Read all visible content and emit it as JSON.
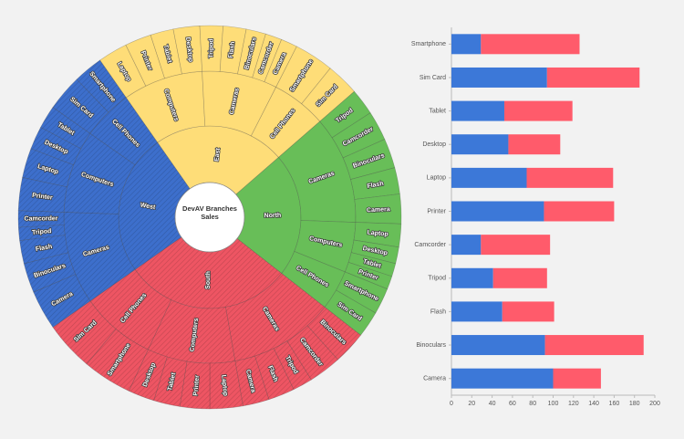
{
  "chart_data": [
    {
      "type": "sunburst",
      "title": "DevAV Branches Sales",
      "children": [
        {
          "name": "East",
          "color": "#fedd78",
          "children": [
            {
              "name": "Computers",
              "children": [
                {
                  "name": "Laptop",
                  "value": 9
                },
                {
                  "name": "Printer",
                  "value": 8
                },
                {
                  "name": "Tablet",
                  "value": 7
                },
                {
                  "name": "Desktop",
                  "value": 8
                }
              ]
            },
            {
              "name": "Cameras",
              "children": [
                {
                  "name": "Tripod",
                  "value": 7
                },
                {
                  "name": "Flash",
                  "value": 7
                },
                {
                  "name": "Binoculars",
                  "value": 6
                },
                {
                  "name": "Camcorder",
                  "value": 5
                },
                {
                  "name": "Camera",
                  "value": 5
                }
              ]
            },
            {
              "name": "Cell Phones",
              "children": [
                {
                  "name": "Smartphone",
                  "value": 12
                },
                {
                  "name": "Sim Card",
                  "value": 10
                }
              ]
            }
          ]
        },
        {
          "name": "North",
          "color": "#68be58",
          "children": [
            {
              "name": "Cameras",
              "children": [
                {
                  "name": "Tripod",
                  "value": 8
                },
                {
                  "name": "Camcorder",
                  "value": 9
                },
                {
                  "name": "Binoculars",
                  "value": 9
                },
                {
                  "name": "Flash",
                  "value": 8
                },
                {
                  "name": "Camera",
                  "value": 9
                }
              ]
            },
            {
              "name": "Computers",
              "children": [
                {
                  "name": "Laptop",
                  "value": 7
                },
                {
                  "name": "Desktop",
                  "value": 5
                },
                {
                  "name": "Tablet",
                  "value": 4
                },
                {
                  "name": "Printer",
                  "value": 4
                }
              ]
            },
            {
              "name": "Cell Phones",
              "children": [
                {
                  "name": "Smartphone",
                  "value": 8
                },
                {
                  "name": "Sim Card",
                  "value": 8
                }
              ]
            }
          ]
        },
        {
          "name": "South",
          "color": "#ee5563",
          "hatched": true,
          "children": [
            {
              "name": "Cameras",
              "children": [
                {
                  "name": "Binoculars",
                  "value": 10
                },
                {
                  "name": "Camcorder",
                  "value": 10
                },
                {
                  "name": "Tripod",
                  "value": 6
                },
                {
                  "name": "Flash",
                  "value": 8
                },
                {
                  "name": "Camera",
                  "value": 8
                }
              ]
            },
            {
              "name": "Computers",
              "children": [
                {
                  "name": "Laptop",
                  "value": 10
                },
                {
                  "name": "Printer",
                  "value": 9
                },
                {
                  "name": "Tablet",
                  "value": 8
                },
                {
                  "name": "Desktop",
                  "value": 8
                }
              ]
            },
            {
              "name": "Cell Phones",
              "children": [
                {
                  "name": "Smartphone",
                  "value": 15
                },
                {
                  "name": "Sim Card",
                  "value": 15
                }
              ]
            }
          ]
        },
        {
          "name": "West",
          "color": "#3d6fcc",
          "hatched": true,
          "children": [
            {
              "name": "Cameras",
              "children": [
                {
                  "name": "Camera",
                  "value": 12
                },
                {
                  "name": "Binoculars",
                  "value": 9
                },
                {
                  "name": "Flash",
                  "value": 7
                },
                {
                  "name": "Tripod",
                  "value": 4
                },
                {
                  "name": "Camcorder",
                  "value": 5
                }
              ]
            },
            {
              "name": "Computers",
              "children": [
                {
                  "name": "Printer",
                  "value": 10
                },
                {
                  "name": "Laptop",
                  "value": 9
                },
                {
                  "name": "Desktop",
                  "value": 7
                },
                {
                  "name": "Tablet",
                  "value": 7
                }
              ]
            },
            {
              "name": "Cell Phones",
              "children": [
                {
                  "name": "Sim Card",
                  "value": 11
                },
                {
                  "name": "Smartphone",
                  "value": 9
                }
              ]
            }
          ]
        }
      ]
    },
    {
      "type": "bar",
      "orientation": "horizontal",
      "stacked": true,
      "categories": [
        "Smartphone",
        "Sim Card",
        "Tablet",
        "Desktop",
        "Laptop",
        "Printer",
        "Camcorder",
        "Tripod",
        "Flash",
        "Binoculars",
        "Camera"
      ],
      "series": [
        {
          "color": "#3c78d8",
          "values": [
            29,
            94,
            52,
            56,
            74,
            91,
            29,
            41,
            50,
            92,
            100
          ]
        },
        {
          "color": "#ff5b6b",
          "values": [
            97,
            91,
            67,
            51,
            85,
            69,
            68,
            53,
            51,
            97,
            47
          ]
        }
      ],
      "xlim": [
        0,
        200
      ],
      "xticks": [
        0,
        20,
        40,
        60,
        80,
        100,
        120,
        140,
        160,
        180,
        200
      ]
    }
  ]
}
